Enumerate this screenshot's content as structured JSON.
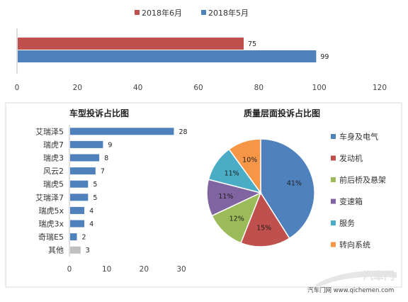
{
  "chart_data": [
    {
      "type": "bar",
      "orientation": "horizontal",
      "series": [
        {
          "name": "2018年6月",
          "color": "#C0504D",
          "values": [
            75
          ]
        },
        {
          "name": "2018年5月",
          "color": "#4F81BD",
          "values": [
            99
          ]
        }
      ],
      "xlim": [
        0,
        120
      ],
      "xticks": [
        0,
        20,
        40,
        60,
        80,
        100,
        120
      ],
      "legend": "top"
    },
    {
      "type": "bar",
      "orientation": "horizontal",
      "title": "车型投诉占比图",
      "categories": [
        "艾瑞泽5",
        "瑞虎7",
        "瑞虎3",
        "风云2",
        "瑞虎5",
        "艾瑞泽7",
        "瑞虎5x",
        "瑞虎3x",
        "奇瑞E5",
        "其他"
      ],
      "values": [
        28,
        9,
        8,
        7,
        5,
        5,
        4,
        4,
        2,
        3
      ],
      "colors": [
        "#4F81BD",
        "#4F81BD",
        "#4F81BD",
        "#4F81BD",
        "#4F81BD",
        "#4F81BD",
        "#4F81BD",
        "#4F81BD",
        "#4F81BD",
        "#BFBFBF"
      ],
      "xlim": [
        0,
        30
      ],
      "xticks": [
        0,
        10,
        20,
        30
      ]
    },
    {
      "type": "pie",
      "title": "质量层面投诉占比图",
      "labels": [
        "车身及电气",
        "发动机",
        "前后桥及悬架",
        "变速箱",
        "服务",
        "转向系统"
      ],
      "values": [
        41,
        15,
        12,
        11,
        11,
        10
      ],
      "value_labels": [
        "41%",
        "15%",
        "12%",
        "11%",
        "11%",
        "10%"
      ],
      "colors": [
        "#4F81BD",
        "#C0504D",
        "#9BBB59",
        "#8064A2",
        "#4BACC6",
        "#F79646"
      ],
      "legend": "right"
    }
  ],
  "watermark": {
    "site": "汽车门网 www.qichemen.com",
    "logo": "汽車門"
  }
}
